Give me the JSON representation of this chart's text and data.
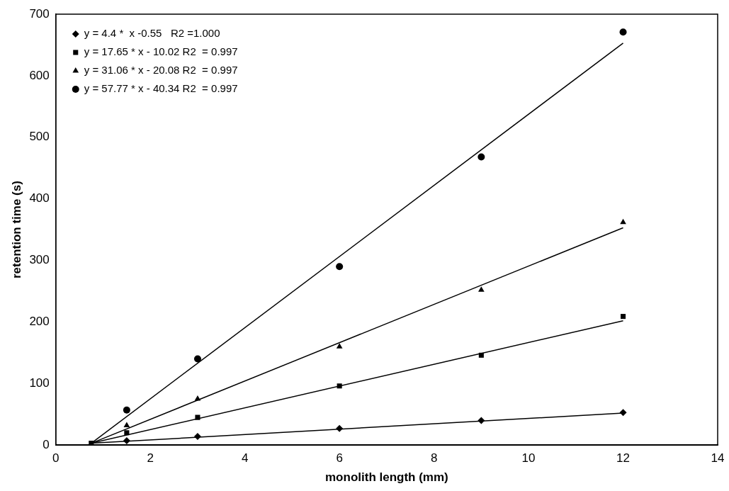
{
  "chart_data": {
    "type": "scatter",
    "xlabel": "monolith length (mm)",
    "ylabel": "retention time (s)",
    "xlim": [
      0,
      14
    ],
    "xticks": [
      0,
      2,
      4,
      6,
      8,
      10,
      12,
      14
    ],
    "ylim": [
      0,
      700
    ],
    "yticks": [
      0,
      100,
      200,
      300,
      400,
      500,
      600,
      700
    ],
    "grid": false,
    "legend": "top left",
    "series": [
      {
        "name": "y = 4.4 *  x -0.55   R2 =1.000",
        "color": "#000000",
        "marker": "diamond",
        "x": [
          1.5,
          3,
          6,
          9,
          12
        ],
        "values": [
          7,
          14,
          27,
          40,
          53
        ]
      },
      {
        "name": "y = 17.65 * x - 10.02 R2  = 0.997",
        "color": "#000000",
        "marker": "square",
        "x": [
          0.75,
          1.5,
          3,
          6,
          9,
          12
        ],
        "values": [
          3,
          20,
          45,
          96,
          146,
          209
        ]
      },
      {
        "name": "y = 31.06 * x - 20.08 R2  = 0.997",
        "color": "#000000",
        "marker": "triangle",
        "x": [
          1.5,
          3,
          6,
          9,
          12
        ],
        "values": [
          32,
          75,
          160,
          252,
          362
        ]
      },
      {
        "name": "y = 57.77 * x - 40.34 R2  = 0.997",
        "color": "#000000",
        "marker": "circle",
        "x": [
          1.5,
          3,
          6,
          9,
          12
        ],
        "values": [
          57,
          140,
          290,
          468,
          671
        ]
      },
      {
        "type": "line",
        "color": "#000000",
        "marker": "none",
        "x": [
          0.75,
          12
        ],
        "values": [
          3,
          52
        ]
      },
      {
        "type": "line",
        "color": "#000000",
        "marker": "none",
        "x": [
          0.75,
          12
        ],
        "values": [
          3,
          202
        ]
      },
      {
        "type": "line",
        "color": "#000000",
        "marker": "none",
        "x": [
          0.75,
          12
        ],
        "values": [
          3,
          353
        ]
      },
      {
        "type": "line",
        "color": "#000000",
        "marker": "none",
        "x": [
          0.75,
          12
        ],
        "values": [
          3,
          653
        ]
      }
    ]
  }
}
